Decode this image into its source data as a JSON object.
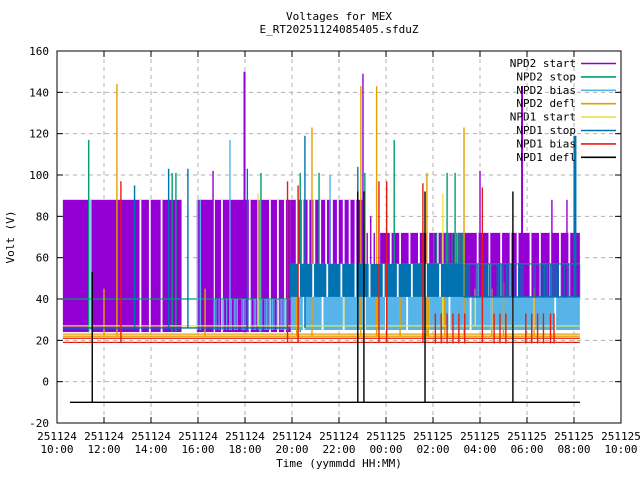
{
  "chart_data": {
    "type": "line",
    "title": "Voltages for MEX",
    "subtitle": "E_RT20251124085405.sfduZ",
    "xlabel": "Time (yymmdd HH:MM)",
    "ylabel": "Volt (V)",
    "ylim": [
      -20,
      160
    ],
    "ytick_step": 20,
    "x_hours_span": 24,
    "grid": true,
    "legend_position": "top-right-inside",
    "grid_color": "#b0b0b0",
    "xticks": [
      {
        "day": "251124",
        "time": "10:00"
      },
      {
        "day": "251124",
        "time": "12:00"
      },
      {
        "day": "251124",
        "time": "14:00"
      },
      {
        "day": "251124",
        "time": "16:00"
      },
      {
        "day": "251124",
        "time": "18:00"
      },
      {
        "day": "251124",
        "time": "20:00"
      },
      {
        "day": "251124",
        "time": "22:00"
      },
      {
        "day": "251125",
        "time": "00:00"
      },
      {
        "day": "251125",
        "time": "02:00"
      },
      {
        "day": "251125",
        "time": "04:00"
      },
      {
        "day": "251125",
        "time": "06:00"
      },
      {
        "day": "251125",
        "time": "08:00"
      },
      {
        "day": "251125",
        "time": "10:00"
      }
    ],
    "series": [
      {
        "name": "NPD2 start",
        "color": "#9400d3",
        "bands": [
          {
            "t0": 0.25,
            "t1": 5.3,
            "v0": 24,
            "v1": 88,
            "gaps": [
              1.42,
              3.55,
              3.95,
              4.45
            ]
          },
          {
            "t0": 5.95,
            "t1": 9.95,
            "v0": 24,
            "v1": 88,
            "gaps": [
              6.68,
              7.02,
              8.2,
              8.66,
              9.06,
              9.4,
              9.7
            ]
          },
          {
            "t0": 9.95,
            "t1": 13.0,
            "v0": 57,
            "v1": 88,
            "gaps": [
              10.2,
              10.45,
              10.7,
              10.95,
              11.2,
              11.45,
              11.7,
              11.95,
              12.2,
              12.45,
              12.7
            ]
          },
          {
            "t0": 13.75,
            "t1": 17.2,
            "v0": 57,
            "v1": 72,
            "gaps": [
              14.2,
              14.6,
              15.0,
              15.4,
              15.8,
              16.2,
              16.6,
              17.0
            ]
          },
          {
            "t0": 17.2,
            "t1": 22.25,
            "v0": 41,
            "v1": 72,
            "gaps": [
              17.9,
              18.4,
              18.9,
              19.3,
              19.6,
              20.15,
              20.55,
              21.0,
              21.4,
              21.8
            ]
          }
        ],
        "hlines": [],
        "spikes": [
          [
            6.64,
            102,
            24
          ],
          [
            7.98,
            150,
            24,
            2
          ],
          [
            13.02,
            149,
            57
          ],
          [
            13.2,
            72,
            57
          ],
          [
            13.35,
            80,
            57
          ],
          [
            13.5,
            72,
            57
          ],
          [
            18.0,
            102,
            41
          ],
          [
            19.79,
            143,
            41,
            2
          ],
          [
            21.06,
            88,
            41
          ],
          [
            21.7,
            88,
            41
          ]
        ]
      },
      {
        "name": "NPD2 stop",
        "color": "#009e73",
        "bands": [
          {
            "t0": 15.9,
            "t1": 17.35,
            "v0": 57,
            "v1": 72,
            "style": "sparse"
          }
        ],
        "hlines": [
          [
            0.25,
            9.95,
            40
          ],
          [
            15.2,
            22.25,
            57
          ]
        ],
        "spikes": [
          [
            1.35,
            117,
            24
          ],
          [
            4.9,
            101,
            24
          ],
          [
            5.06,
            101,
            24
          ],
          [
            8.68,
            101,
            24
          ],
          [
            10.35,
            101,
            24
          ],
          [
            11.15,
            101,
            25
          ],
          [
            13.1,
            101,
            25
          ],
          [
            14.35,
            117,
            25
          ],
          [
            16.6,
            101,
            25
          ],
          [
            16.94,
            101,
            25
          ]
        ]
      },
      {
        "name": "NPD2 bias",
        "color": "#56b4e9",
        "bands": [
          {
            "t0": 6.7,
            "t1": 9.95,
            "v0": 25,
            "v1": 40,
            "style": "sparse"
          },
          {
            "t0": 9.95,
            "t1": 22.25,
            "v0": 25,
            "v1": 41,
            "gaps": [
              10.5,
              11.3,
              12.2,
              13.1,
              14.0,
              14.9,
              15.8,
              16.7,
              17.6,
              18.5,
              19.4,
              20.3,
              21.2
            ]
          }
        ],
        "hlines": [],
        "spikes": [
          [
            1.45,
            88,
            25
          ],
          [
            5.98,
            88,
            25
          ],
          [
            6.1,
            88,
            25
          ],
          [
            7.36,
            117,
            25
          ],
          [
            11.62,
            100,
            25
          ]
        ]
      },
      {
        "name": "NPD2 defl",
        "color": "#e69f00",
        "bands": [],
        "hlines": [
          [
            0.25,
            22.25,
            23
          ],
          [
            0.25,
            22.25,
            22
          ]
        ],
        "spikes": [
          [
            2.55,
            144,
            22
          ],
          [
            10.85,
            123,
            22
          ],
          [
            12.93,
            143,
            22
          ],
          [
            13.6,
            143,
            22
          ],
          [
            15.74,
            101,
            22
          ],
          [
            17.32,
            123,
            22
          ],
          [
            2.0,
            45,
            22
          ],
          [
            6.3,
            45,
            22
          ],
          [
            10.2,
            48,
            22
          ],
          [
            14.6,
            45,
            22
          ],
          [
            15.8,
            50,
            22
          ],
          [
            16.5,
            45,
            22
          ],
          [
            18.5,
            45,
            22
          ],
          [
            19.0,
            48,
            22
          ],
          [
            20.3,
            45,
            22
          ]
        ]
      },
      {
        "name": "NPD1 start",
        "color": "#f0e442",
        "bands": [],
        "hlines": [
          [
            0.25,
            22.25,
            27
          ]
        ],
        "spikes": [
          [
            8.55,
            91,
            27
          ],
          [
            13.06,
            91,
            27
          ],
          [
            16.42,
            91,
            27
          ],
          [
            12.2,
            45,
            27
          ],
          [
            17.8,
            45,
            27
          ]
        ]
      },
      {
        "name": "NPD1 stop",
        "color": "#0072b2",
        "bands": [
          {
            "t0": 9.9,
            "t1": 17.3,
            "v0": 41,
            "v1": 57,
            "gaps": [
              10.3,
              10.9,
              11.5,
              12.1,
              12.7,
              13.3,
              13.9,
              14.5,
              15.1,
              15.7,
              16.3
            ]
          },
          {
            "t0": 17.3,
            "t1": 22.25,
            "v0": 41,
            "v1": 57,
            "style": "sparse"
          }
        ],
        "hlines": [
          [
            0.25,
            9.9,
            26
          ],
          [
            17.3,
            22.25,
            41
          ]
        ],
        "spikes": [
          [
            3.3,
            95,
            26
          ],
          [
            4.75,
            103,
            26
          ],
          [
            5.57,
            103,
            26
          ],
          [
            8.1,
            103,
            24
          ],
          [
            10.55,
            119,
            26
          ],
          [
            12.8,
            104,
            41
          ],
          [
            22.04,
            119,
            41,
            3
          ]
        ]
      },
      {
        "name": "NPD1 bias",
        "color": "#e51e10",
        "bands": [],
        "hlines": [
          [
            0.25,
            22.25,
            21
          ],
          [
            0.25,
            22.25,
            19
          ]
        ],
        "spikes": [
          [
            2.72,
            97,
            19
          ],
          [
            9.81,
            97,
            19
          ],
          [
            10.26,
            95,
            19
          ],
          [
            13.7,
            97,
            19
          ],
          [
            14.03,
            97,
            19
          ],
          [
            15.57,
            96,
            19
          ],
          [
            18.1,
            94,
            19
          ],
          [
            16.1,
            33,
            18.5
          ],
          [
            16.35,
            33,
            18.5
          ],
          [
            16.6,
            33,
            18.5
          ],
          [
            16.85,
            33,
            18.5
          ],
          [
            17.1,
            33,
            18.5
          ],
          [
            17.35,
            33,
            18.5
          ],
          [
            18.6,
            33,
            18.5
          ],
          [
            18.85,
            33,
            18.5
          ],
          [
            19.1,
            33,
            18.5
          ],
          [
            19.95,
            33,
            18.5
          ],
          [
            20.2,
            33,
            18.5
          ],
          [
            20.45,
            33,
            18.5
          ],
          [
            20.7,
            33,
            18.5
          ],
          [
            21.0,
            33,
            18.5
          ],
          [
            21.15,
            33,
            18.5
          ]
        ]
      },
      {
        "name": "NPD1 defl",
        "color": "#000000",
        "bands": [],
        "hlines": [
          [
            0.55,
            22.25,
            -10
          ]
        ],
        "spikes": [
          [
            1.5,
            53,
            -10
          ],
          [
            12.8,
            92,
            -10
          ],
          [
            13.06,
            92,
            -10
          ],
          [
            15.66,
            92,
            -10
          ],
          [
            19.4,
            92,
            -10
          ]
        ]
      }
    ]
  }
}
